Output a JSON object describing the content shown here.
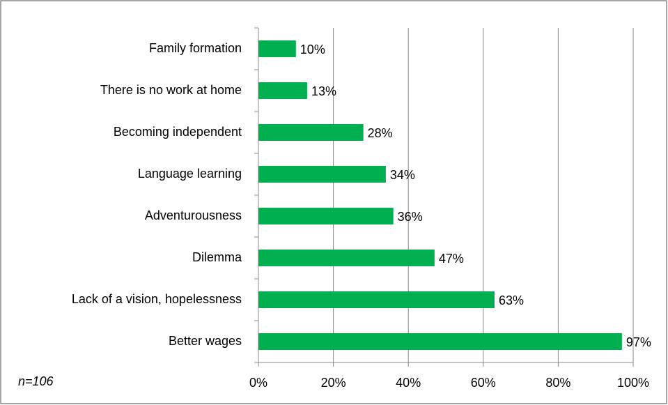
{
  "chart_data": {
    "type": "barh",
    "categories": [
      "Family formation",
      "There is no work at home",
      "Becoming independent",
      "Language learning",
      "Adventurousness",
      "Dilemma",
      "Lack of a vision, hopelessness",
      "Better wages"
    ],
    "values": [
      10,
      13,
      28,
      34,
      36,
      47,
      63,
      97
    ],
    "value_labels": [
      "10%",
      "13%",
      "28%",
      "34%",
      "36%",
      "47%",
      "63%",
      "97%"
    ],
    "color": "#00b050",
    "xlim": [
      0,
      100
    ],
    "xticks": [
      {
        "value": 0,
        "label": "0%"
      },
      {
        "value": 20,
        "label": "20%"
      },
      {
        "value": 40,
        "label": "40%"
      },
      {
        "value": 60,
        "label": "60%"
      },
      {
        "value": 80,
        "label": "80%"
      },
      {
        "value": 100,
        "label": "100%"
      }
    ],
    "grid": true,
    "annotation": "n=106"
  }
}
